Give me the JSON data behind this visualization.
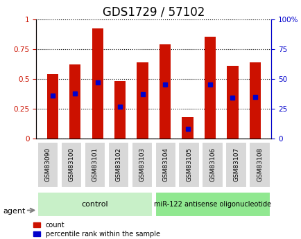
{
  "title": "GDS1729 / 57102",
  "samples": [
    "GSM83090",
    "GSM83100",
    "GSM83101",
    "GSM83102",
    "GSM83103",
    "GSM83104",
    "GSM83105",
    "GSM83106",
    "GSM83107",
    "GSM83108"
  ],
  "count_values": [
    0.54,
    0.62,
    0.92,
    0.48,
    0.64,
    0.79,
    0.18,
    0.85,
    0.61,
    0.64
  ],
  "percentile_values": [
    0.36,
    0.38,
    0.47,
    0.27,
    0.37,
    0.45,
    0.08,
    0.45,
    0.34,
    0.35
  ],
  "bar_color": "#cc1100",
  "dot_color": "#0000cc",
  "ylim_left": [
    0,
    1.0
  ],
  "ylim_right": [
    0,
    100
  ],
  "yticks_left": [
    0,
    0.25,
    0.5,
    0.75,
    1.0
  ],
  "ytick_labels_left": [
    "0",
    "0.25",
    "0.5",
    "0.75",
    "1"
  ],
  "yticks_right": [
    0,
    25,
    50,
    75,
    100
  ],
  "ytick_labels_right": [
    "0",
    "25",
    "50",
    "75",
    "100%"
  ],
  "grid_color": "#000000",
  "bar_width": 0.5,
  "control_samples": [
    "GSM83090",
    "GSM83100",
    "GSM83101",
    "GSM83102",
    "GSM83103"
  ],
  "treatment_samples": [
    "GSM83104",
    "GSM83105",
    "GSM83106",
    "GSM83107",
    "GSM83108"
  ],
  "control_label": "control",
  "treatment_label": "miR-122 antisense oligonucleotide",
  "agent_label": "agent",
  "legend_count": "count",
  "legend_percentile": "percentile rank within the sample",
  "bg_color": "#f0f0f0",
  "control_bg": "#c8f0c8",
  "treatment_bg": "#90e890",
  "plot_bg": "#ffffff",
  "title_fontsize": 12,
  "tick_fontsize": 7.5,
  "label_fontsize": 8
}
